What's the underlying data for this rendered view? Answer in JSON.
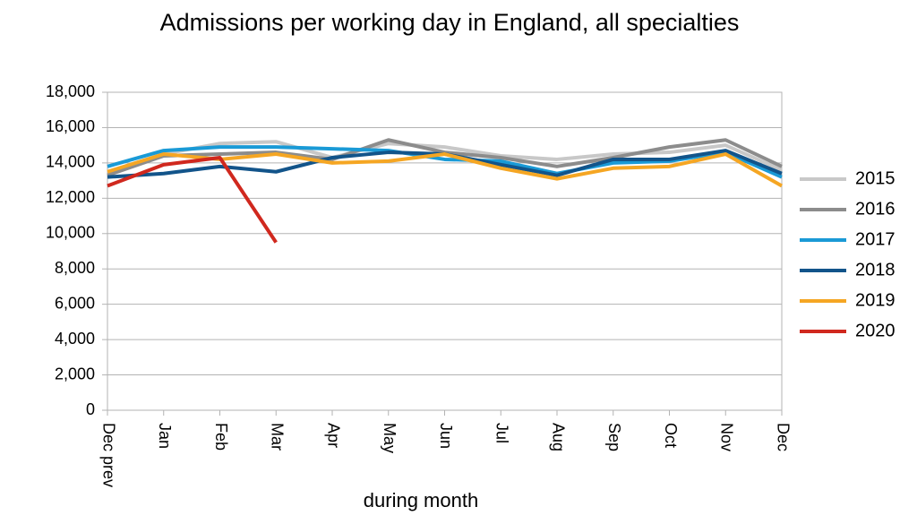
{
  "chart_data": {
    "type": "line",
    "title": "Admissions per working day in England, all specialties",
    "x_label": "during month",
    "categories": [
      "Dec prev",
      "Jan",
      "Feb",
      "Mar",
      "Apr",
      "May",
      "Jun",
      "Jul",
      "Aug",
      "Sep",
      "Oct",
      "Nov",
      "Dec"
    ],
    "ylim": [
      0,
      18000
    ],
    "yticks": [
      {
        "value": 0,
        "label": "0"
      },
      {
        "value": 2000,
        "label": "2,000"
      },
      {
        "value": 4000,
        "label": "4,000"
      },
      {
        "value": 6000,
        "label": "6,000"
      },
      {
        "value": 8000,
        "label": "8,000"
      },
      {
        "value": 10000,
        "label": "10,000"
      },
      {
        "value": 12000,
        "label": "12,000"
      },
      {
        "value": 14000,
        "label": "14,000"
      },
      {
        "value": 16000,
        "label": "16,000"
      },
      {
        "value": 18000,
        "label": "18,000"
      }
    ],
    "grid": true,
    "legend": "right",
    "series": [
      {
        "name": "2015",
        "color": "#c8c8c8",
        "values": [
          13500,
          14500,
          15100,
          15200,
          14300,
          15100,
          14900,
          14400,
          14200,
          14500,
          14600,
          15000,
          13600
        ]
      },
      {
        "name": "2016",
        "color": "#8c8c8c",
        "values": [
          13300,
          14400,
          14500,
          14600,
          14200,
          15300,
          14600,
          14300,
          13800,
          14300,
          14900,
          15300,
          13800
        ]
      },
      {
        "name": "2017",
        "color": "#1a9ad6",
        "values": [
          13800,
          14700,
          14900,
          14900,
          14800,
          14700,
          14200,
          14100,
          13400,
          14000,
          14100,
          14600,
          13200
        ]
      },
      {
        "name": "2018",
        "color": "#12548a",
        "values": [
          13200,
          13400,
          13800,
          13500,
          14300,
          14600,
          14500,
          13900,
          13300,
          14200,
          14200,
          14700,
          13400
        ]
      },
      {
        "name": "2019",
        "color": "#f5a623",
        "values": [
          13500,
          14500,
          14200,
          14500,
          14000,
          14100,
          14500,
          13700,
          13100,
          13700,
          13800,
          14500,
          12700
        ]
      },
      {
        "name": "2020",
        "color": "#d0281e",
        "values": [
          12700,
          13900,
          14300,
          9500,
          null,
          null,
          null,
          null,
          null,
          null,
          null,
          null,
          null
        ]
      }
    ]
  }
}
